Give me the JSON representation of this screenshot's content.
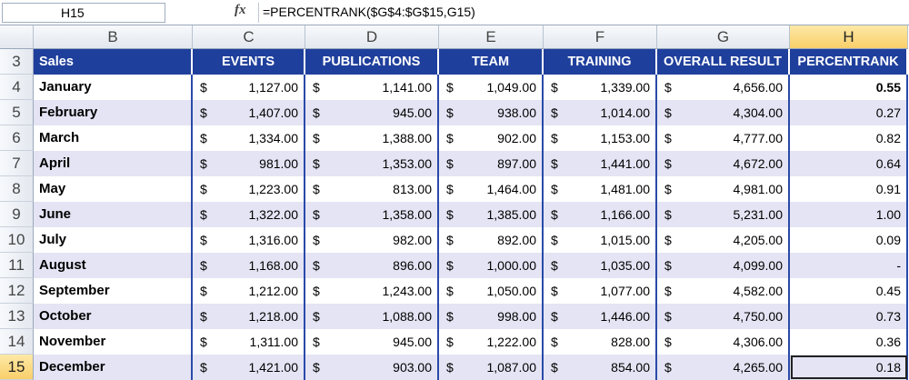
{
  "name_box": "H15",
  "function_label": "fx",
  "formula": "=PERCENTRANK($G$4:$G$15,G15)",
  "columns": [
    "B",
    "C",
    "D",
    "E",
    "F",
    "G",
    "H"
  ],
  "row_numbers": [
    3,
    4,
    5,
    6,
    7,
    8,
    9,
    10,
    11,
    12,
    13,
    14,
    15
  ],
  "currency": "$",
  "header": [
    "Sales",
    "EVENTS",
    "PUBLICATIONS",
    "TEAM",
    "TRAINING",
    "OVERALL RESULT",
    "PERCENTRANK"
  ],
  "rows": [
    [
      "January",
      "1,127.00",
      "1,141.00",
      "1,049.00",
      "1,339.00",
      "4,656.00",
      "0.55"
    ],
    [
      "February",
      "1,407.00",
      "945.00",
      "938.00",
      "1,014.00",
      "4,304.00",
      "0.27"
    ],
    [
      "March",
      "1,334.00",
      "1,388.00",
      "902.00",
      "1,153.00",
      "4,777.00",
      "0.82"
    ],
    [
      "April",
      "981.00",
      "1,353.00",
      "897.00",
      "1,441.00",
      "4,672.00",
      "0.64"
    ],
    [
      "May",
      "1,223.00",
      "813.00",
      "1,464.00",
      "1,481.00",
      "4,981.00",
      "0.91"
    ],
    [
      "June",
      "1,322.00",
      "1,358.00",
      "1,385.00",
      "1,166.00",
      "5,231.00",
      "1.00"
    ],
    [
      "July",
      "1,316.00",
      "982.00",
      "892.00",
      "1,015.00",
      "4,205.00",
      "0.09"
    ],
    [
      "August",
      "1,168.00",
      "896.00",
      "1,000.00",
      "1,035.00",
      "4,099.00",
      "-"
    ],
    [
      "September",
      "1,212.00",
      "1,243.00",
      "1,050.00",
      "1,077.00",
      "4,582.00",
      "0.45"
    ],
    [
      "October",
      "1,218.00",
      "1,088.00",
      "998.00",
      "1,446.00",
      "4,750.00",
      "0.73"
    ],
    [
      "November",
      "1,311.00",
      "945.00",
      "1,222.00",
      "828.00",
      "4,306.00",
      "0.36"
    ],
    [
      "December",
      "1,421.00",
      "903.00",
      "1,087.00",
      "854.00",
      "4,265.00",
      "0.18"
    ]
  ]
}
